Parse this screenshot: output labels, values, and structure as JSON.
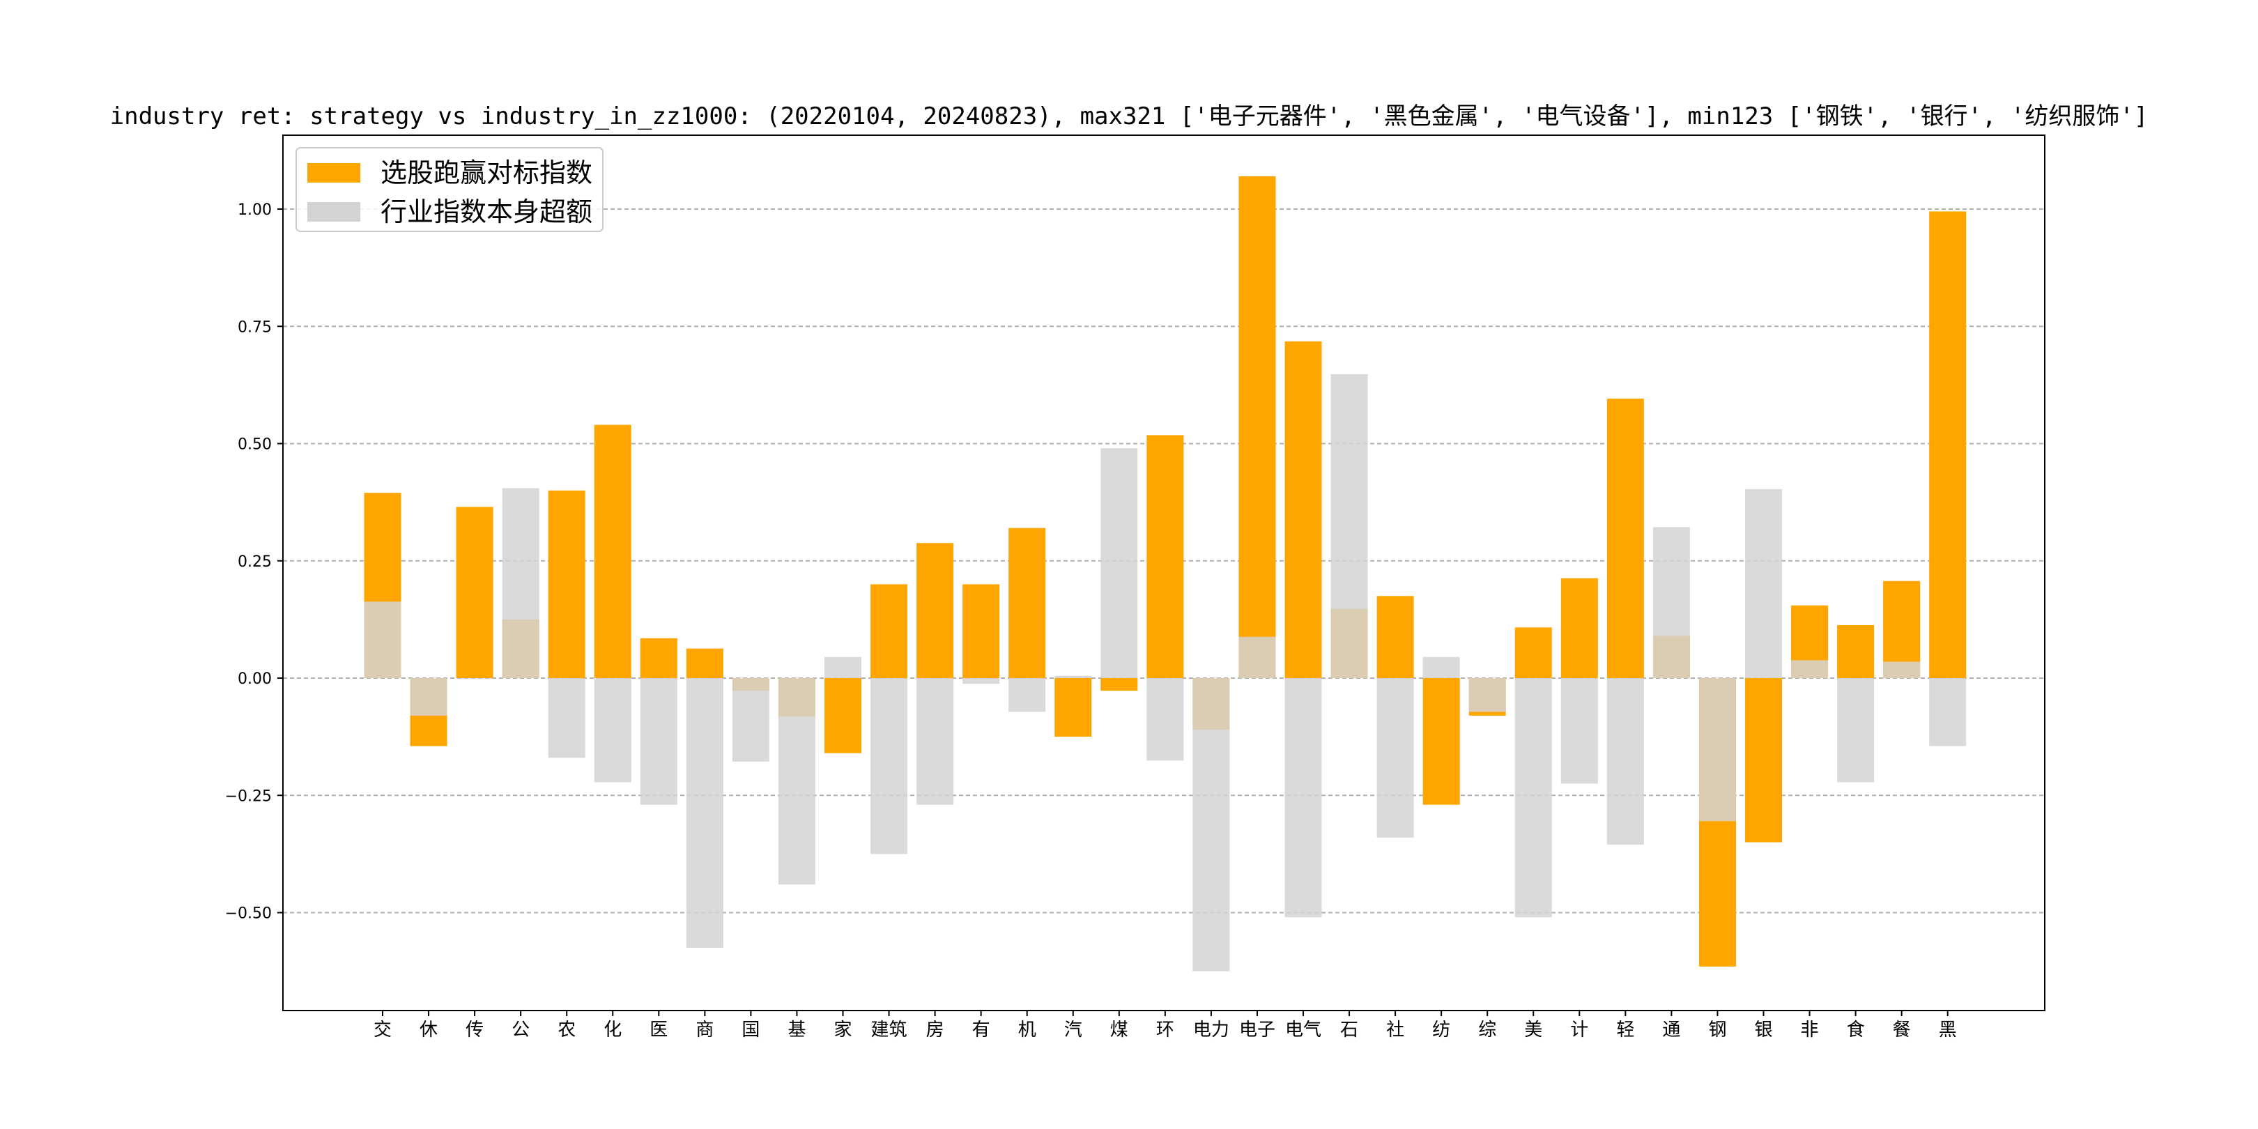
{
  "chart_data": {
    "type": "bar",
    "title": "industry ret: strategy vs industry_in_zz1000: (20220104, 20240823), max321 ['电子元器件', '黑色金属', '电气设备'], min123 ['钢铁', '银行', '纺织服饰']",
    "xlabel": "",
    "ylabel": "",
    "ylim": [
      -0.7,
      1.1
    ],
    "yticks": [
      -0.5,
      -0.25,
      0.0,
      0.25,
      0.5,
      0.75,
      1.0
    ],
    "ytick_labels": [
      "−0.50",
      "−0.25",
      "0.00",
      "0.25",
      "0.50",
      "0.75",
      "1.00"
    ],
    "grid": "y-dashed",
    "legend_position": "top-left",
    "categories": [
      "交",
      "休",
      "传",
      "公",
      "农",
      "化",
      "医",
      "商",
      "国",
      "基",
      "家",
      "建筑",
      "房",
      "有",
      "机",
      "汽",
      "煤",
      "环",
      "电力",
      "电子",
      "电气",
      "石",
      "社",
      "纺",
      "综",
      "美",
      "计",
      "轻",
      "通",
      "钢",
      "银",
      "非",
      "食",
      "餐",
      "黑"
    ],
    "series": [
      {
        "name": "选股跑赢对标指数",
        "color": "#FFA500",
        "values": [
          0.395,
          -0.145,
          0.365,
          0.125,
          0.4,
          0.54,
          0.085,
          0.063,
          -0.027,
          -0.082,
          -0.16,
          0.2,
          0.288,
          0.2,
          0.32,
          -0.125,
          -0.027,
          0.518,
          -0.11,
          1.07,
          0.718,
          0.148,
          0.175,
          -0.27,
          -0.08,
          0.108,
          0.213,
          0.596,
          0.09,
          -0.615,
          -0.35,
          0.155,
          0.113,
          0.207,
          0.995
        ]
      },
      {
        "name": "行业指数本身超额",
        "color": "#D3D3D3",
        "values": [
          0.163,
          -0.08,
          0.0,
          0.405,
          -0.17,
          -0.222,
          -0.27,
          -0.575,
          -0.178,
          -0.44,
          0.045,
          -0.375,
          -0.27,
          -0.012,
          -0.072,
          0.005,
          0.49,
          -0.176,
          -0.625,
          0.088,
          -0.51,
          0.648,
          -0.34,
          0.045,
          -0.072,
          -0.51,
          -0.225,
          -0.355,
          0.322,
          -0.305,
          0.403,
          0.038,
          -0.222,
          0.035,
          -0.145
        ]
      }
    ]
  }
}
